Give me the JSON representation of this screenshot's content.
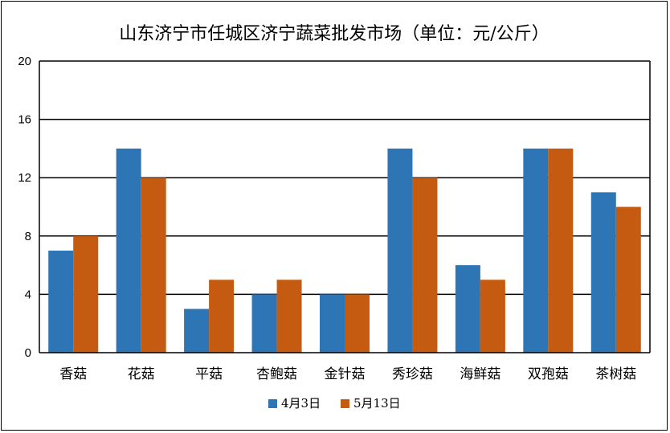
{
  "chart_data": {
    "type": "bar",
    "title": "山东济宁市任城区济宁蔬菜批发市场（单位：元/公斤）",
    "categories": [
      "香菇",
      "花菇",
      "平菇",
      "杏鲍菇",
      "金针菇",
      "秀珍菇",
      "海鲜菇",
      "双孢菇",
      "茶树菇"
    ],
    "series": [
      {
        "name": "4月3日",
        "values": [
          7,
          14,
          3,
          4,
          4,
          14,
          6,
          14,
          11
        ]
      },
      {
        "name": "5月13日",
        "values": [
          8,
          12,
          5,
          5,
          4,
          12,
          5,
          14,
          10
        ]
      }
    ],
    "ylim": [
      0,
      20
    ],
    "yticks": [
      0,
      4,
      8,
      12,
      16,
      20
    ],
    "grid": true,
    "legend": "bottom",
    "colors": [
      "#2E75B6",
      "#C55A11"
    ]
  }
}
